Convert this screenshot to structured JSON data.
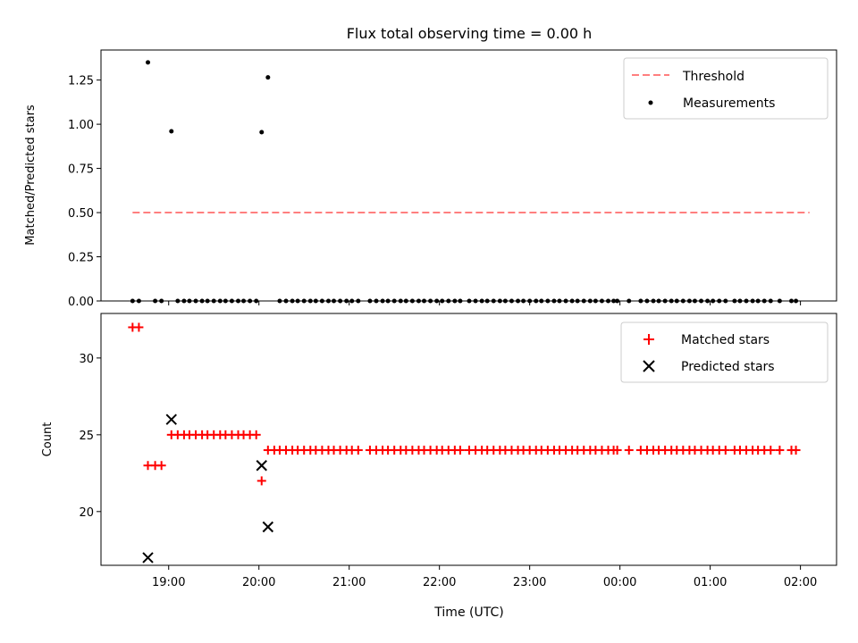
{
  "title": "Flux total observing time = 0.00 h",
  "colors": {
    "threshold": "#ff7f7f",
    "measurements": "#000000",
    "matched": "#ff0000",
    "predicted": "#000000",
    "axes": "#000000",
    "background": "#ffffff"
  },
  "chart_data": [
    {
      "type": "scatter",
      "panel": "top",
      "title": "Flux total observing time = 0.00 h",
      "xlabel": "",
      "ylabel": "Matched/Predicted stars",
      "xlim": [
        18.25,
        26.4
      ],
      "ylim": [
        0.0,
        1.42
      ],
      "yticks": [
        0.0,
        0.25,
        0.5,
        0.75,
        1.0,
        1.25
      ],
      "ytick_labels": [
        "0.00",
        "0.25",
        "0.50",
        "0.75",
        "1.00",
        "1.25"
      ],
      "legend": {
        "position": "top-right",
        "entries": [
          "Threshold",
          "Measurements"
        ]
      },
      "series": [
        {
          "name": "Threshold",
          "style": "dashed-line",
          "x": [
            18.6,
            26.1
          ],
          "y": [
            0.5,
            0.5
          ]
        },
        {
          "name": "Measurements",
          "style": "dot",
          "x": [
            18.6,
            18.67,
            18.77,
            18.85,
            18.92,
            19.03,
            19.1,
            19.17,
            19.23,
            19.3,
            19.37,
            19.43,
            19.5,
            19.57,
            19.63,
            19.7,
            19.77,
            19.83,
            19.9,
            19.97,
            20.03,
            20.1,
            20.23,
            20.3,
            20.37,
            20.43,
            20.5,
            20.57,
            20.63,
            20.7,
            20.77,
            20.83,
            20.9,
            20.97,
            21.03,
            21.1,
            21.23,
            21.3,
            21.37,
            21.43,
            21.5,
            21.57,
            21.63,
            21.7,
            21.77,
            21.83,
            21.9,
            21.97,
            22.03,
            22.1,
            22.17,
            22.23,
            22.33,
            22.4,
            22.47,
            22.53,
            22.6,
            22.67,
            22.73,
            22.8,
            22.87,
            22.93,
            23.0,
            23.07,
            23.13,
            23.2,
            23.27,
            23.33,
            23.4,
            23.47,
            23.53,
            23.6,
            23.67,
            23.73,
            23.8,
            23.87,
            23.93,
            23.97,
            24.1,
            24.23,
            24.3,
            24.37,
            24.43,
            24.5,
            24.57,
            24.63,
            24.7,
            24.77,
            24.83,
            24.9,
            24.97,
            25.03,
            25.1,
            25.17,
            25.27,
            25.33,
            25.4,
            25.47,
            25.53,
            25.6,
            25.67,
            25.77,
            25.9,
            25.95
          ],
          "y": [
            0,
            0,
            1.35,
            0,
            0,
            0.96,
            0,
            0,
            0,
            0,
            0,
            0,
            0,
            0,
            0,
            0,
            0,
            0,
            0,
            0,
            0.955,
            1.265,
            0,
            0,
            0,
            0,
            0,
            0,
            0,
            0,
            0,
            0,
            0,
            0,
            0,
            0,
            0,
            0,
            0,
            0,
            0,
            0,
            0,
            0,
            0,
            0,
            0,
            0,
            0,
            0,
            0,
            0,
            0,
            0,
            0,
            0,
            0,
            0,
            0,
            0,
            0,
            0,
            0,
            0,
            0,
            0,
            0,
            0,
            0,
            0,
            0,
            0,
            0,
            0,
            0,
            0,
            0,
            0,
            0,
            0,
            0,
            0,
            0,
            0,
            0,
            0,
            0,
            0,
            0,
            0,
            0,
            0,
            0,
            0,
            0,
            0,
            0,
            0,
            0,
            0,
            0,
            0,
            0,
            0
          ]
        }
      ]
    },
    {
      "type": "scatter",
      "panel": "bottom",
      "xlabel": "Time (UTC)",
      "ylabel": "Count",
      "xlim": [
        18.25,
        26.4
      ],
      "ylim": [
        16.5,
        32.9
      ],
      "xticks": [
        19,
        20,
        21,
        22,
        23,
        24,
        25,
        26
      ],
      "xtick_labels": [
        "19:00",
        "20:00",
        "21:00",
        "22:00",
        "23:00",
        "00:00",
        "01:00",
        "02:00"
      ],
      "yticks": [
        20,
        25,
        30
      ],
      "ytick_labels": [
        "20",
        "25",
        "30"
      ],
      "legend": {
        "position": "top-right",
        "entries": [
          "Matched stars",
          "Predicted stars"
        ]
      },
      "series": [
        {
          "name": "Matched stars",
          "marker": "plus",
          "x": [
            18.6,
            18.67,
            18.77,
            18.85,
            18.92,
            19.03,
            19.1,
            19.17,
            19.23,
            19.3,
            19.37,
            19.43,
            19.5,
            19.57,
            19.63,
            19.7,
            19.77,
            19.83,
            19.9,
            19.97,
            20.03,
            20.1,
            20.17,
            20.23,
            20.3,
            20.37,
            20.43,
            20.5,
            20.57,
            20.63,
            20.7,
            20.77,
            20.83,
            20.9,
            20.97,
            21.03,
            21.1,
            21.23,
            21.3,
            21.37,
            21.43,
            21.5,
            21.57,
            21.63,
            21.7,
            21.77,
            21.83,
            21.9,
            21.97,
            22.03,
            22.1,
            22.17,
            22.23,
            22.33,
            22.4,
            22.47,
            22.53,
            22.6,
            22.67,
            22.73,
            22.8,
            22.87,
            22.93,
            23.0,
            23.07,
            23.13,
            23.2,
            23.27,
            23.33,
            23.4,
            23.47,
            23.53,
            23.6,
            23.67,
            23.73,
            23.8,
            23.87,
            23.93,
            23.97,
            24.1,
            24.23,
            24.3,
            24.37,
            24.43,
            24.5,
            24.57,
            24.63,
            24.7,
            24.77,
            24.83,
            24.9,
            24.97,
            25.03,
            25.1,
            25.17,
            25.27,
            25.33,
            25.4,
            25.47,
            25.53,
            25.6,
            25.67,
            25.77,
            25.9,
            25.95
          ],
          "y": [
            32,
            32,
            23,
            23,
            23,
            25,
            25,
            25,
            25,
            25,
            25,
            25,
            25,
            25,
            25,
            25,
            25,
            25,
            25,
            25,
            22,
            24,
            24,
            24,
            24,
            24,
            24,
            24,
            24,
            24,
            24,
            24,
            24,
            24,
            24,
            24,
            24,
            24,
            24,
            24,
            24,
            24,
            24,
            24,
            24,
            24,
            24,
            24,
            24,
            24,
            24,
            24,
            24,
            24,
            24,
            24,
            24,
            24,
            24,
            24,
            24,
            24,
            24,
            24,
            24,
            24,
            24,
            24,
            24,
            24,
            24,
            24,
            24,
            24,
            24,
            24,
            24,
            24,
            24,
            24,
            24,
            24,
            24,
            24,
            24,
            24,
            24,
            24,
            24,
            24,
            24,
            24,
            24,
            24,
            24,
            24,
            24,
            24,
            24,
            24,
            24,
            24,
            24,
            24,
            24
          ]
        },
        {
          "name": "Predicted stars",
          "marker": "x",
          "x": [
            18.77,
            19.03,
            20.03,
            20.1
          ],
          "y": [
            17,
            26,
            23,
            19
          ]
        }
      ]
    }
  ]
}
